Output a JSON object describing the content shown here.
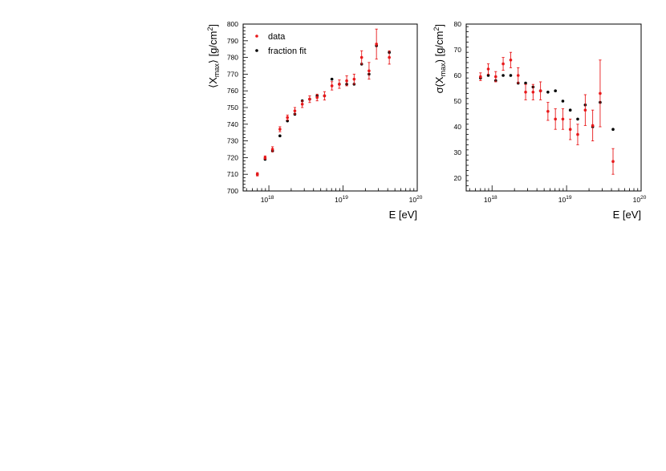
{
  "colors": {
    "data": "#e8191b",
    "fit": "#000000"
  },
  "chart_data": [
    {
      "type": "scatter",
      "xlabel": "E [eV]",
      "ylabel_parts": {
        "pre": "⟨X",
        "sub": "max",
        "mid": "⟩ [g/cm",
        "sup": "2",
        "post": "]"
      },
      "xscale": "log",
      "xlim": [
        4.5e+17,
        1e+20
      ],
      "ylim": [
        700,
        800
      ],
      "yticks": [
        700,
        710,
        720,
        730,
        740,
        750,
        760,
        770,
        780,
        790,
        800
      ],
      "xticks": [
        {
          "value": 1e+18,
          "base": "10",
          "exp": "18"
        },
        {
          "value": 1e+19,
          "base": "10",
          "exp": "19"
        },
        {
          "value": 1e+20,
          "base": "10",
          "exp": "20"
        }
      ],
      "legend": {
        "placement": "top-left",
        "entries": [
          "data",
          "fraction fit"
        ]
      },
      "series": [
        {
          "name": "data",
          "x": [
            7e+17,
            8.9e+17,
            1.12e+18,
            1.41e+18,
            1.78e+18,
            2.24e+18,
            2.82e+18,
            3.55e+18,
            4.47e+18,
            5.62e+18,
            7.08e+18,
            8.91e+18,
            1.12e+19,
            1.41e+19,
            1.78e+19,
            2.24e+19,
            2.82e+19,
            4.2e+19
          ],
          "y": [
            710,
            720,
            725,
            737,
            744,
            748,
            752,
            755,
            756,
            757,
            763,
            764,
            766,
            767,
            780,
            772,
            788,
            780
          ],
          "err": [
            1,
            1,
            1.5,
            1.5,
            1.5,
            2,
            2,
            2,
            2,
            2.5,
            2.5,
            2.5,
            3,
            3,
            4,
            5,
            9,
            4
          ]
        },
        {
          "name": "fraction fit",
          "x": [
            7e+17,
            8.9e+17,
            1.12e+18,
            1.41e+18,
            1.78e+18,
            2.24e+18,
            2.82e+18,
            3.55e+18,
            4.47e+18,
            5.62e+18,
            7.08e+18,
            8.91e+18,
            1.12e+19,
            1.41e+19,
            1.78e+19,
            2.24e+19,
            2.82e+19,
            4.2e+19
          ],
          "y": [
            710,
            719,
            724,
            733,
            742,
            746,
            754,
            755,
            757,
            757,
            767,
            764,
            764,
            764,
            776,
            770,
            787,
            783
          ]
        }
      ]
    },
    {
      "type": "scatter",
      "xlabel": "E [eV]",
      "ylabel_parts": {
        "pre": "σ(X",
        "sub": "max",
        "mid": ") [g/cm",
        "sup": "2",
        "post": "]"
      },
      "xscale": "log",
      "xlim": [
        4.5e+17,
        1e+20
      ],
      "ylim": [
        15,
        80
      ],
      "yticks": [
        20,
        30,
        40,
        50,
        60,
        70,
        80
      ],
      "xticks": [
        {
          "value": 1e+18,
          "base": "10",
          "exp": "18"
        },
        {
          "value": 1e+19,
          "base": "10",
          "exp": "19"
        },
        {
          "value": 1e+20,
          "base": "10",
          "exp": "20"
        }
      ],
      "series": [
        {
          "name": "data",
          "x": [
            7e+17,
            8.9e+17,
            1.12e+18,
            1.41e+18,
            1.78e+18,
            2.24e+18,
            2.82e+18,
            3.55e+18,
            4.47e+18,
            5.62e+18,
            7.08e+18,
            8.91e+18,
            1.12e+19,
            1.41e+19,
            1.78e+19,
            2.24e+19,
            2.82e+19,
            4.2e+19
          ],
          "y": [
            59.5,
            62.5,
            59.5,
            64.5,
            66,
            60,
            53.5,
            53.5,
            54,
            46,
            43,
            43,
            39,
            37,
            46.5,
            40.5,
            53,
            26.5
          ],
          "err": [
            1.5,
            2,
            2,
            2.5,
            3,
            3,
            3,
            3,
            3.5,
            3.5,
            4,
            4,
            4,
            4,
            6,
            6,
            13,
            5
          ]
        },
        {
          "name": "fraction fit",
          "x": [
            7e+17,
            8.9e+17,
            1.12e+18,
            1.41e+18,
            1.78e+18,
            2.24e+18,
            2.82e+18,
            3.55e+18,
            4.47e+18,
            5.62e+18,
            7.08e+18,
            8.91e+18,
            1.12e+19,
            1.41e+19,
            1.78e+19,
            2.24e+19,
            2.82e+19,
            4.2e+19
          ],
          "y": [
            59,
            60,
            58,
            60,
            60,
            57,
            57,
            55.5,
            54,
            53.5,
            54,
            50,
            46.5,
            43,
            48.5,
            40,
            49.5,
            39
          ]
        }
      ]
    }
  ]
}
